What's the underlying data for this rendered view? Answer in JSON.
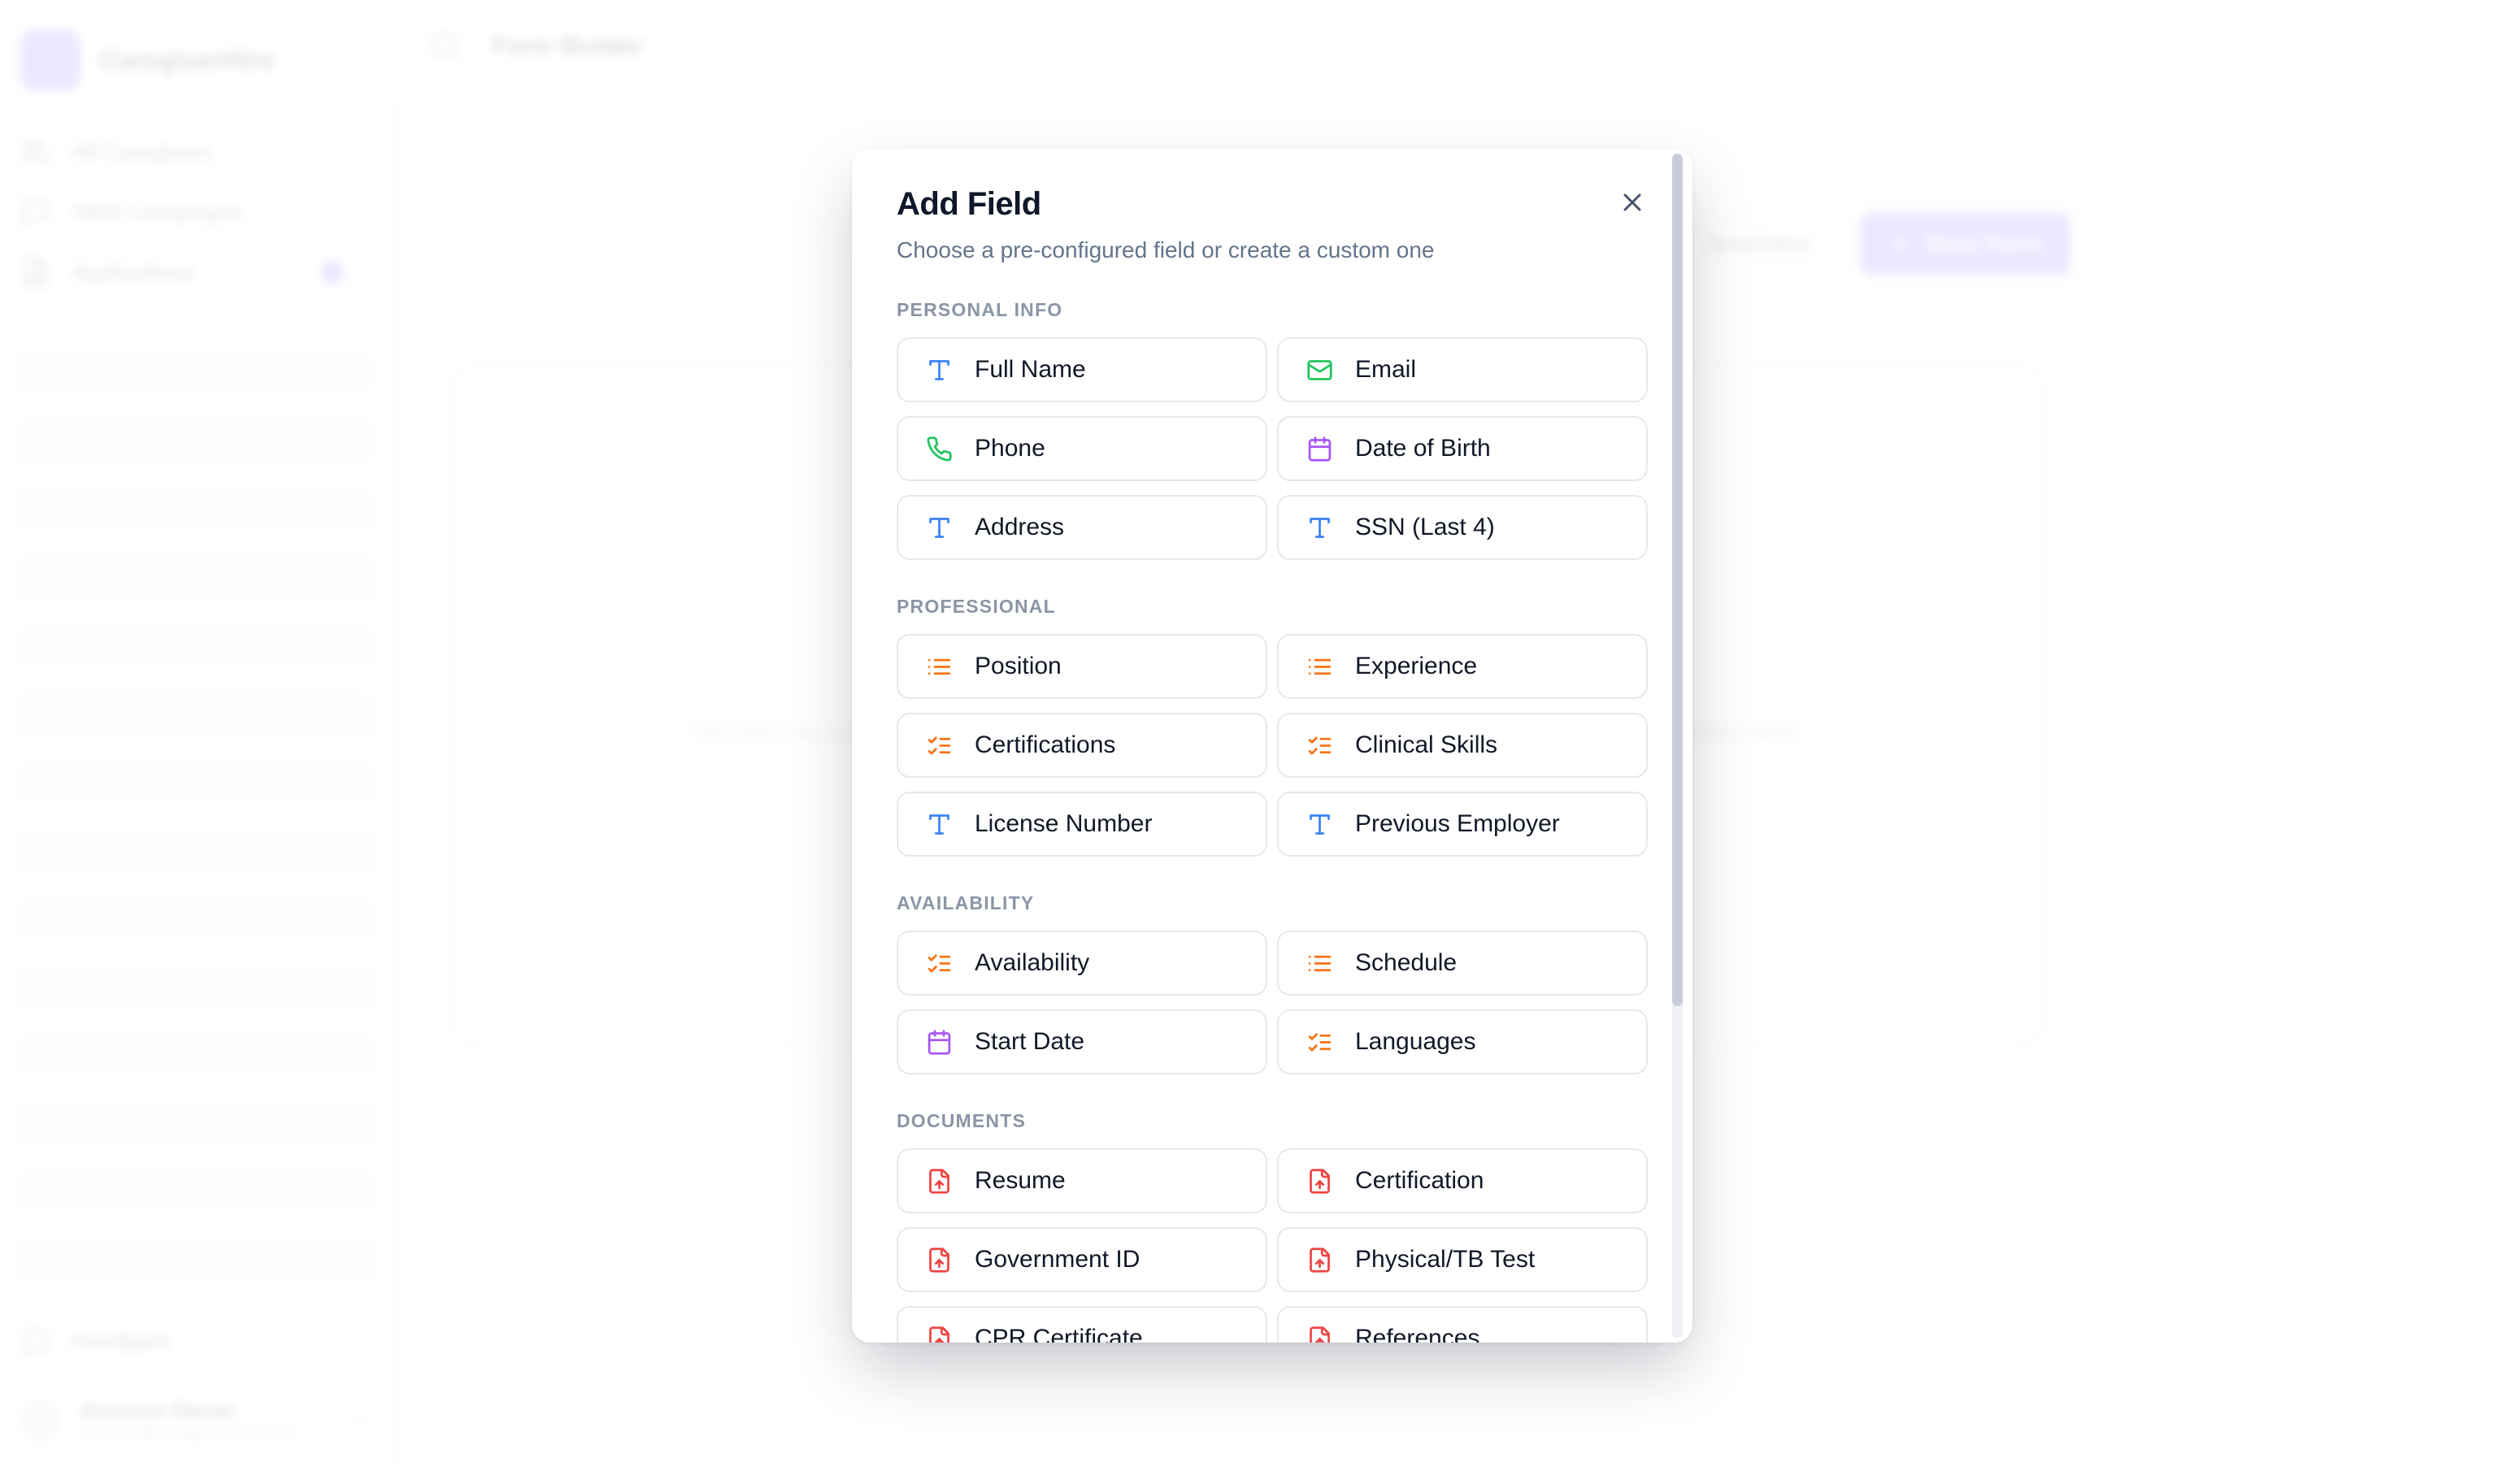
{
  "background": {
    "sidebar": {
      "logo_text": "CaregiverHire",
      "nav_items": [
        {
          "label": "All Caregivers",
          "icon": "users-icon"
        },
        {
          "label": "SMS Campaigns",
          "icon": "message-square-icon"
        },
        {
          "label": "Applications",
          "icon": "file-text-icon",
          "badge": true
        }
      ],
      "badge_color": "#7c5cfa",
      "feedback_label": "Feedback",
      "feedback_icon": "message-circle-icon",
      "user": {
        "name": "Account Owner",
        "email": "account@caregiverhire.com"
      }
    },
    "topbar": {
      "search_icon": "search-icon",
      "title": "Form Builder"
    },
    "toolbar": {
      "templates_label": "Templates",
      "primary_label": "Save Form",
      "primary_icon": "plus-icon",
      "primary_color": "#7c5cfa"
    },
    "canvas": {
      "empty_text": "This form has no fields yet. Click the Add Field button to add pre-configured fields or create your own custom fields."
    }
  },
  "modal": {
    "title": "Add Field",
    "subtitle": "Choose a pre-configured field or create a custom one",
    "close_icon": "x-icon",
    "scrollbar_thumb_pct": 72,
    "icon_colors": {
      "text": "#3b82f6",
      "green": "#22c55e",
      "purple": "#a855f7",
      "orange": "#f97316",
      "red": "#ef4444"
    },
    "sections": [
      {
        "label": "PERSONAL INFO",
        "fields": [
          {
            "label": "Full Name",
            "icon": "type-icon",
            "color": "#3b82f6"
          },
          {
            "label": "Email",
            "icon": "mail-icon",
            "color": "#22c55e"
          },
          {
            "label": "Phone",
            "icon": "phone-icon",
            "color": "#22c55e"
          },
          {
            "label": "Date of Birth",
            "icon": "calendar-icon",
            "color": "#a855f7"
          },
          {
            "label": "Address",
            "icon": "type-icon",
            "color": "#3b82f6"
          },
          {
            "label": "SSN (Last 4)",
            "icon": "type-icon",
            "color": "#3b82f6"
          }
        ]
      },
      {
        "label": "PROFESSIONAL",
        "fields": [
          {
            "label": "Position",
            "icon": "list-icon",
            "color": "#f97316"
          },
          {
            "label": "Experience",
            "icon": "list-icon",
            "color": "#f97316"
          },
          {
            "label": "Certifications",
            "icon": "list-checks-icon",
            "color": "#f97316"
          },
          {
            "label": "Clinical Skills",
            "icon": "list-checks-icon",
            "color": "#f97316"
          },
          {
            "label": "License Number",
            "icon": "type-icon",
            "color": "#3b82f6"
          },
          {
            "label": "Previous Employer",
            "icon": "type-icon",
            "color": "#3b82f6"
          }
        ]
      },
      {
        "label": "AVAILABILITY",
        "fields": [
          {
            "label": "Availability",
            "icon": "list-checks-icon",
            "color": "#f97316"
          },
          {
            "label": "Schedule",
            "icon": "list-icon",
            "color": "#f97316"
          },
          {
            "label": "Start Date",
            "icon": "calendar-icon",
            "color": "#a855f7"
          },
          {
            "label": "Languages",
            "icon": "list-checks-icon",
            "color": "#f97316"
          }
        ]
      },
      {
        "label": "DOCUMENTS",
        "fields": [
          {
            "label": "Resume",
            "icon": "file-up-icon",
            "color": "#ef4444"
          },
          {
            "label": "Certification",
            "icon": "file-up-icon",
            "color": "#ef4444"
          },
          {
            "label": "Government ID",
            "icon": "file-up-icon",
            "color": "#ef4444"
          },
          {
            "label": "Physical/TB Test",
            "icon": "file-up-icon",
            "color": "#ef4444"
          },
          {
            "label": "CPR Certificate",
            "icon": "file-up-icon",
            "color": "#ef4444"
          },
          {
            "label": "References",
            "icon": "file-up-icon",
            "color": "#ef4444"
          }
        ]
      }
    ]
  }
}
